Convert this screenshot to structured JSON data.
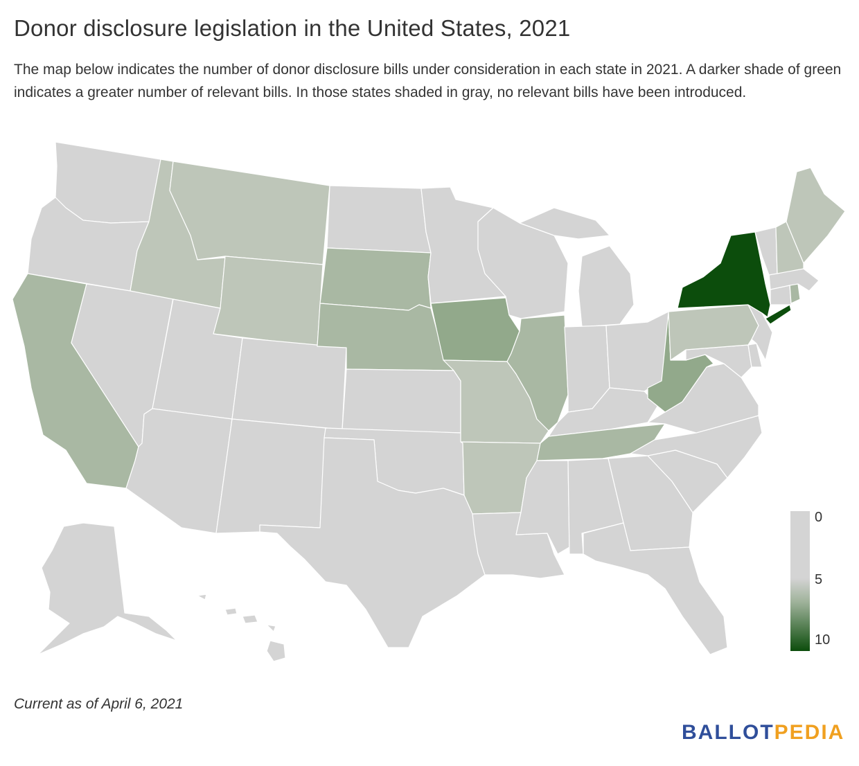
{
  "title": "Donor disclosure legislation in the United States, 2021",
  "subtitle": "The map below indicates the number of donor disclosure bills under consideration in each state in 2021. A darker shade of green indicates a greater number of relevant bills. In those states shaded in gray, no relevant bills have been introduced.",
  "footnote": "Current as of April 6, 2021",
  "brand": {
    "part1": "BALLOT",
    "part2": "PEDIA",
    "color1": "#2f4e9a",
    "color2": "#f0a020"
  },
  "legend": {
    "min_label": "0",
    "mid_label": "5",
    "max_label": "10",
    "colors": [
      "#d4d4d4",
      "#d4d4d4",
      "#9fb29a",
      "#0c4d0c"
    ]
  },
  "colors": {
    "none": "#d4d4d4",
    "light": "#bec6b9",
    "medium": "#a9b8a3",
    "darker": "#92a98b",
    "darkest": "#0c4d0c"
  },
  "states": [
    {
      "id": "AK",
      "shade": "none"
    },
    {
      "id": "HI",
      "shade": "none"
    },
    {
      "id": "WA",
      "shade": "none"
    },
    {
      "id": "OR",
      "shade": "none"
    },
    {
      "id": "CA",
      "shade": "medium"
    },
    {
      "id": "NV",
      "shade": "none"
    },
    {
      "id": "ID",
      "shade": "light"
    },
    {
      "id": "MT",
      "shade": "light"
    },
    {
      "id": "WY",
      "shade": "light"
    },
    {
      "id": "UT",
      "shade": "none"
    },
    {
      "id": "AZ",
      "shade": "none"
    },
    {
      "id": "CO",
      "shade": "none"
    },
    {
      "id": "NM",
      "shade": "none"
    },
    {
      "id": "ND",
      "shade": "none"
    },
    {
      "id": "SD",
      "shade": "medium"
    },
    {
      "id": "NE",
      "shade": "medium"
    },
    {
      "id": "KS",
      "shade": "none"
    },
    {
      "id": "OK",
      "shade": "none"
    },
    {
      "id": "TX",
      "shade": "none"
    },
    {
      "id": "MN",
      "shade": "none"
    },
    {
      "id": "IA",
      "shade": "darker"
    },
    {
      "id": "MO",
      "shade": "light"
    },
    {
      "id": "AR",
      "shade": "light"
    },
    {
      "id": "LA",
      "shade": "none"
    },
    {
      "id": "WI",
      "shade": "none"
    },
    {
      "id": "IL",
      "shade": "medium"
    },
    {
      "id": "MI",
      "shade": "none"
    },
    {
      "id": "IN",
      "shade": "none"
    },
    {
      "id": "OH",
      "shade": "none"
    },
    {
      "id": "KY",
      "shade": "none"
    },
    {
      "id": "TN",
      "shade": "medium"
    },
    {
      "id": "MS",
      "shade": "none"
    },
    {
      "id": "AL",
      "shade": "none"
    },
    {
      "id": "GA",
      "shade": "none"
    },
    {
      "id": "FL",
      "shade": "none"
    },
    {
      "id": "SC",
      "shade": "none"
    },
    {
      "id": "NC",
      "shade": "none"
    },
    {
      "id": "VA",
      "shade": "none"
    },
    {
      "id": "WV",
      "shade": "darker"
    },
    {
      "id": "PA",
      "shade": "light"
    },
    {
      "id": "NY",
      "shade": "darkest"
    },
    {
      "id": "NJ",
      "shade": "none"
    },
    {
      "id": "DE",
      "shade": "none"
    },
    {
      "id": "MD",
      "shade": "none"
    },
    {
      "id": "CT",
      "shade": "none"
    },
    {
      "id": "RI",
      "shade": "medium"
    },
    {
      "id": "MA",
      "shade": "none"
    },
    {
      "id": "VT",
      "shade": "none"
    },
    {
      "id": "NH",
      "shade": "light"
    },
    {
      "id": "ME",
      "shade": "light"
    }
  ]
}
